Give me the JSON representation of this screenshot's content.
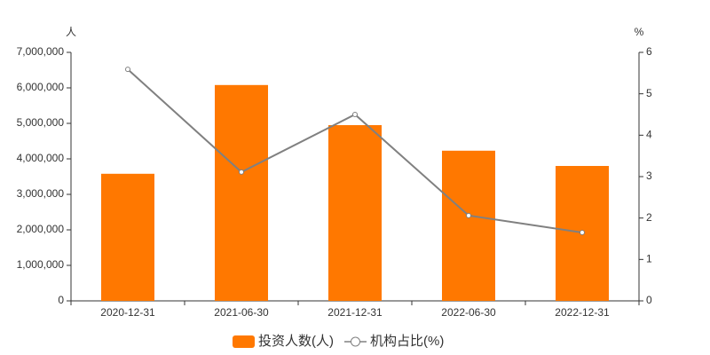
{
  "chart_data": {
    "type": "bar-line",
    "y_label": "人",
    "y2_label": "%",
    "categories": [
      "2020-12-31",
      "2021-06-30",
      "2021-12-31",
      "2022-06-30",
      "2022-12-31"
    ],
    "series": [
      {
        "name": "投资人数(人)",
        "type": "bar",
        "color": "#ff7800",
        "values": [
          3580000,
          6080000,
          4950000,
          4230000,
          3800000
        ]
      },
      {
        "name": "机构占比(%)",
        "type": "line",
        "axis": "y2",
        "color": "#808080",
        "values": [
          5.59,
          3.11,
          4.5,
          2.06,
          1.65
        ]
      }
    ],
    "ylim": [
      0,
      7000000
    ],
    "yticks": [
      0,
      {
        "value": 1000000,
        "label": "1,000,000"
      },
      {
        "value": 2000000,
        "label": "2,000,000"
      },
      {
        "value": 3000000,
        "label": "3,000,000"
      },
      {
        "value": 4000000,
        "label": "4,000,000"
      },
      {
        "value": 5000000,
        "label": "5,000,000"
      },
      {
        "value": 6000000,
        "label": "6,000,000"
      },
      {
        "value": 7000000,
        "label": "7,000,000"
      }
    ],
    "y2lim": [
      0,
      6
    ],
    "y2ticks": [
      0,
      1,
      2,
      3,
      4,
      5,
      6
    ],
    "legend": "bottom"
  }
}
